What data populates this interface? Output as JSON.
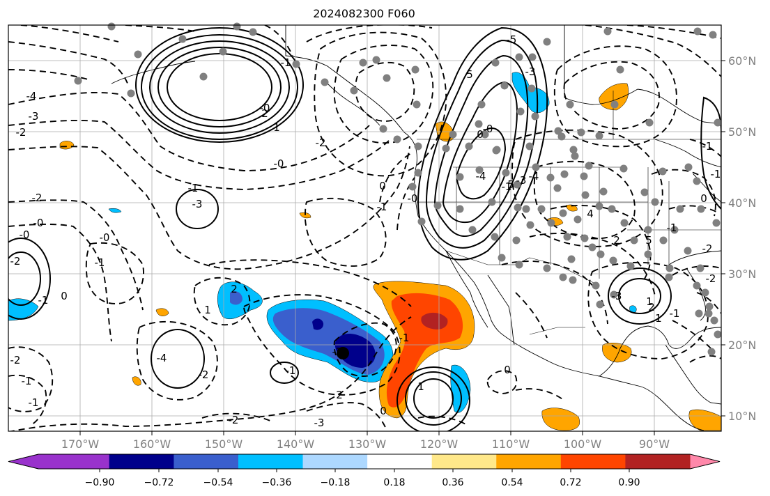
{
  "title": "2024082300 F060",
  "lon_ticks": [
    "170°W",
    "160°W",
    "150°W",
    "140°W",
    "130°W",
    "120°W",
    "110°W",
    "100°W",
    "90°W"
  ],
  "lat_ticks": [
    "60°N",
    "50°N",
    "40°N",
    "30°N",
    "20°N",
    "10°N"
  ],
  "colorbar": {
    "labels": [
      "−0.90",
      "−0.72",
      "−0.54",
      "−0.36",
      "−0.18",
      "0.18",
      "0.36",
      "0.54",
      "0.72",
      "0.90"
    ],
    "colors": [
      "#9932CC",
      "#00008B",
      "#3A5FCD",
      "#00BFFF",
      "#ADD8FF",
      "#FFFFFF",
      "#FFE88A",
      "#FFA500",
      "#FF4500",
      "#B22222",
      "#FF88AA"
    ],
    "under_color": "#9932CC",
    "over_color": "#FF88AA"
  },
  "contour_labels": [
    "-4",
    "-3",
    "-2",
    "-2",
    "-0",
    "-0",
    "-1",
    "-1",
    "-2",
    "-1",
    "-1",
    "-2",
    "-2",
    "-3",
    "0",
    "1",
    "2",
    "-1",
    "-2",
    "-4",
    "-3",
    "-1",
    "-0",
    "-0",
    "-2",
    "-1",
    "2",
    "1",
    "0",
    "-1",
    "-0",
    "-0",
    "-1",
    "-4",
    "5",
    "-5",
    "-3",
    "0",
    "5",
    "-4",
    "-3",
    "4",
    "2",
    "5",
    "1",
    "-3",
    "1",
    "2",
    "0",
    "-1",
    "-2",
    "1",
    "2",
    "-0",
    "0",
    "-1",
    "-1",
    "0",
    "-1",
    "-2",
    "-2",
    "-1"
  ],
  "colors": {
    "map_background": "#ffffff",
    "grid": "#aaaaaa",
    "coastline": "#000000"
  }
}
